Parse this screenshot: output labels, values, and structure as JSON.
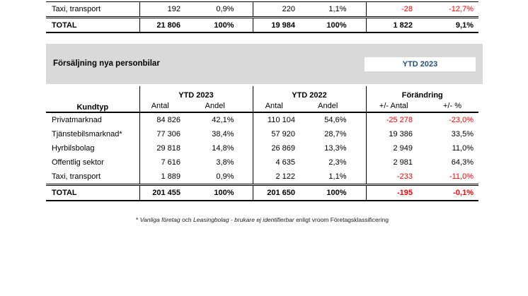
{
  "colors": {
    "banner_bg": "#D9D9D9",
    "accent_blue": "#1F4E79",
    "negative_red": "#FF0000",
    "border": "#000000"
  },
  "top_table": {
    "rows": [
      {
        "cells": [
          "Taxi, transport",
          "192",
          "0,9%",
          "220",
          "1,1%",
          "-28",
          "-12,7%"
        ]
      },
      {
        "cells": [
          "TOTAL",
          "21 806",
          "100%",
          "19 984",
          "100%",
          "1 822",
          "9,1%"
        ],
        "total": true
      }
    ]
  },
  "banner": {
    "title": "Försäljning nya personbilar",
    "badge": "YTD 2023"
  },
  "sales_table": {
    "headers": {
      "kundtyp": "Kundtyp",
      "ytd2023": "YTD 2023",
      "ytd2022": "YTD 2022",
      "forandring": "Förändring",
      "antal": "Antal",
      "andel": "Andel",
      "pm_antal": "+/- Antal",
      "pm_pct": "+/- %"
    },
    "rows": [
      {
        "cells": [
          "Privatmarknad",
          "84 826",
          "42,1%",
          "110 104",
          "54,6%",
          "-25 278",
          "-23,0%"
        ]
      },
      {
        "cells": [
          "Tjänstebilsmarknad*",
          "77 306",
          "38,4%",
          "57 920",
          "28,7%",
          "19 386",
          "33,5%"
        ]
      },
      {
        "cells": [
          "Hyrbilsbolag",
          "29 818",
          "14,8%",
          "26 869",
          "13,3%",
          "2 949",
          "11,0%"
        ]
      },
      {
        "cells": [
          "Offentlig sektor",
          "7 616",
          "3,8%",
          "4 635",
          "2,3%",
          "2 981",
          "64,3%"
        ]
      },
      {
        "cells": [
          "Taxi, transport",
          "1 889",
          "0,9%",
          "2 122",
          "1,1%",
          "-233",
          "-11,0%"
        ]
      },
      {
        "cells": [
          "TOTAL",
          "201 455",
          "100%",
          "201 650",
          "100%",
          "-195",
          "-0,1%"
        ],
        "total": true
      }
    ]
  },
  "footnote": {
    "star": "* ",
    "seg_italic_1": "Vanliga företag",
    "seg_2": " och ",
    "seg_italic_3": "Leasingbolag - brukare ej identifierbar",
    "seg_4": " enligt vroom Företagsklassificering"
  }
}
